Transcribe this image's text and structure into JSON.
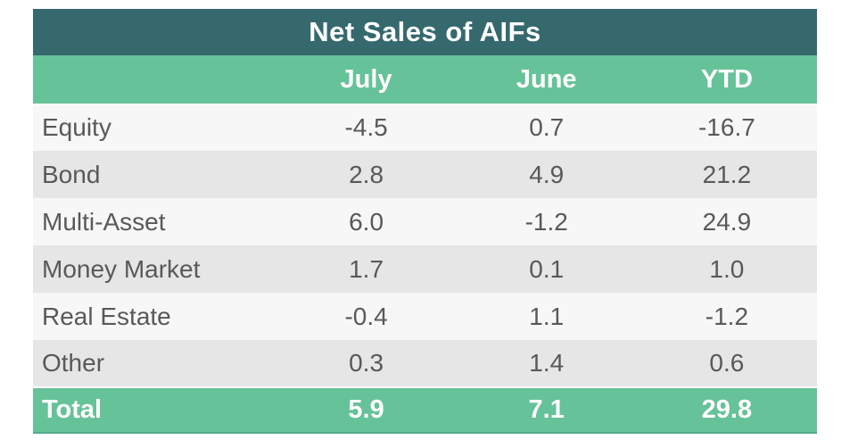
{
  "title": "Net Sales of AIFs",
  "table": {
    "columns": [
      "July",
      "June",
      "YTD"
    ],
    "rows": [
      {
        "label": "Equity",
        "values": [
          "-4.5",
          "0.7",
          "-16.7"
        ]
      },
      {
        "label": "Bond",
        "values": [
          "2.8",
          "4.9",
          "21.2"
        ]
      },
      {
        "label": "Multi-Asset",
        "values": [
          "6.0",
          "-1.2",
          "24.9"
        ]
      },
      {
        "label": "Money Market",
        "values": [
          "1.7",
          "0.1",
          "1.0"
        ]
      },
      {
        "label": "Real Estate",
        "values": [
          "-0.4",
          "1.1",
          "-1.2"
        ]
      },
      {
        "label": "Other",
        "values": [
          "0.3",
          "1.4",
          "0.6"
        ]
      }
    ],
    "total": {
      "label": "Total",
      "values": [
        "5.9",
        "7.1",
        "29.8"
      ]
    }
  },
  "chart_data": {
    "type": "table",
    "title": "Net Sales of AIFs",
    "columns": [
      "July",
      "June",
      "YTD"
    ],
    "categories": [
      "Equity",
      "Bond",
      "Multi-Asset",
      "Money Market",
      "Real Estate",
      "Other",
      "Total"
    ],
    "series": [
      {
        "name": "July",
        "values": [
          -4.5,
          2.8,
          6.0,
          1.7,
          -0.4,
          0.3,
          5.9
        ]
      },
      {
        "name": "June",
        "values": [
          0.7,
          4.9,
          -1.2,
          0.1,
          1.1,
          1.4,
          7.1
        ]
      },
      {
        "name": "YTD",
        "values": [
          -16.7,
          21.2,
          24.9,
          1.0,
          -1.2,
          0.6,
          29.8
        ]
      }
    ]
  },
  "colors": {
    "title_bar": "#35696d",
    "accent_green": "#66c298",
    "row_light": "#f7f7f7",
    "row_dark": "#e6e6e6",
    "data_text": "#595959",
    "header_text": "#ffffff"
  }
}
